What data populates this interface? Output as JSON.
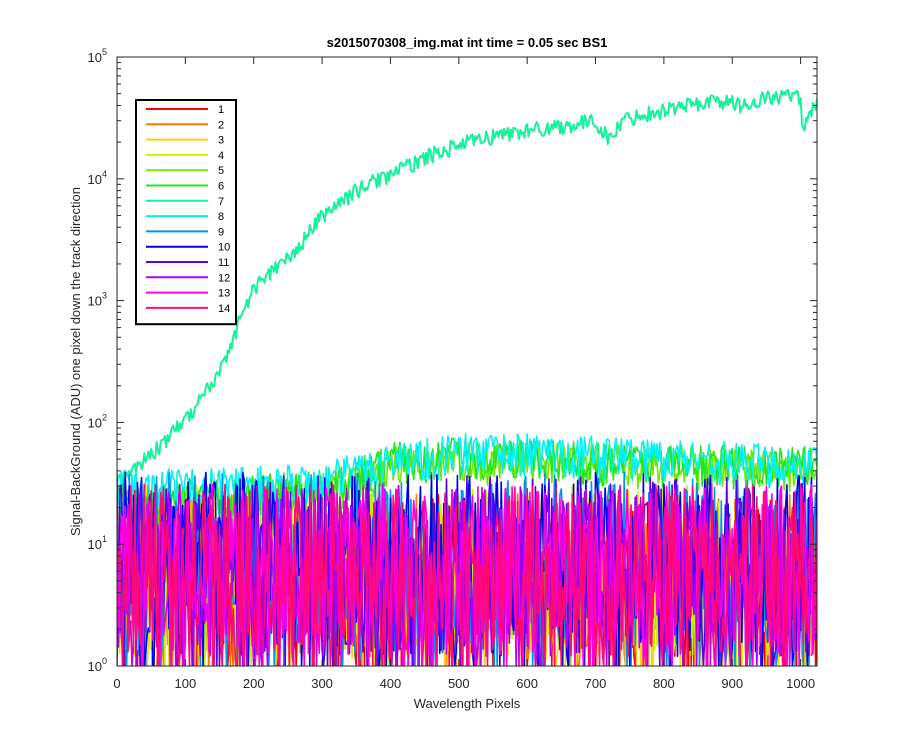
{
  "chart_data": {
    "type": "line",
    "title": "s2015070308_img.mat int time = 0.05 sec   BS1",
    "xlabel": "Wavelength Pixels",
    "ylabel": "Signal-BackGround (ADU) one pixel down the track direction",
    "xlim": [
      0,
      1024
    ],
    "ylim": [
      1,
      100000
    ],
    "yscale": "log",
    "x_ticks": [
      0,
      100,
      200,
      300,
      400,
      500,
      600,
      700,
      800,
      900,
      1000
    ],
    "x_tick_labels": [
      "0",
      "100",
      "200",
      "300",
      "400",
      "500",
      "600",
      "700",
      "800",
      "900",
      "1000"
    ],
    "y_ticks": [
      1,
      10,
      100,
      1000,
      10000,
      100000
    ],
    "y_tick_labels": [
      {
        "base": "10",
        "exp": "0"
      },
      {
        "base": "10",
        "exp": "1"
      },
      {
        "base": "10",
        "exp": "2"
      },
      {
        "base": "10",
        "exp": "3"
      },
      {
        "base": "10",
        "exp": "4"
      },
      {
        "base": "10",
        "exp": "5"
      }
    ],
    "legend_position": "top-left",
    "grid": false,
    "series": [
      {
        "name": "1",
        "color": "#ff0000",
        "profile": "noise",
        "points": [
          [
            0,
            10
          ],
          [
            1024,
            10
          ]
        ]
      },
      {
        "name": "2",
        "color": "#ff7a00",
        "profile": "noise",
        "points": [
          [
            0,
            10
          ],
          [
            1024,
            10
          ]
        ]
      },
      {
        "name": "3",
        "color": "#ffd000",
        "profile": "noise",
        "points": [
          [
            0,
            10
          ],
          [
            1024,
            10
          ]
        ]
      },
      {
        "name": "4",
        "color": "#c8f000",
        "profile": "noise",
        "points": [
          [
            0,
            12
          ],
          [
            1024,
            12
          ]
        ]
      },
      {
        "name": "5",
        "color": "#78e600",
        "profile": "noise",
        "points": [
          [
            0,
            25
          ],
          [
            300,
            30
          ],
          [
            400,
            55
          ],
          [
            500,
            60
          ],
          [
            600,
            60
          ],
          [
            800,
            55
          ],
          [
            1024,
            50
          ]
        ]
      },
      {
        "name": "6",
        "color": "#22e622",
        "profile": "noise",
        "points": [
          [
            0,
            28
          ],
          [
            300,
            35
          ],
          [
            400,
            60
          ],
          [
            500,
            65
          ],
          [
            600,
            62
          ],
          [
            800,
            58
          ],
          [
            1024,
            55
          ]
        ]
      },
      {
        "name": "7",
        "color": "#16f29a",
        "profile": "smooth",
        "points": [
          [
            0,
            35
          ],
          [
            20,
            40
          ],
          [
            50,
            55
          ],
          [
            80,
            80
          ],
          [
            100,
            105
          ],
          [
            120,
            150
          ],
          [
            150,
            260
          ],
          [
            170,
            500
          ],
          [
            180,
            700
          ],
          [
            190,
            950
          ],
          [
            200,
            1250
          ],
          [
            220,
            1650
          ],
          [
            250,
            2200
          ],
          [
            270,
            2900
          ],
          [
            280,
            3600
          ],
          [
            300,
            5000
          ],
          [
            320,
            6100
          ],
          [
            350,
            8000
          ],
          [
            380,
            9800
          ],
          [
            400,
            11000
          ],
          [
            430,
            13000
          ],
          [
            450,
            15000
          ],
          [
            470,
            16500
          ],
          [
            500,
            19000
          ],
          [
            530,
            21000
          ],
          [
            550,
            22500
          ],
          [
            580,
            24000
          ],
          [
            600,
            25000
          ],
          [
            630,
            26500
          ],
          [
            660,
            27500
          ],
          [
            700,
            30000
          ],
          [
            720,
            21000
          ],
          [
            740,
            30000
          ],
          [
            760,
            33000
          ],
          [
            800,
            37000
          ],
          [
            820,
            39000
          ],
          [
            850,
            42000
          ],
          [
            880,
            44000
          ],
          [
            900,
            42000
          ],
          [
            920,
            40000
          ],
          [
            940,
            45000
          ],
          [
            960,
            47000
          ],
          [
            980,
            48000
          ],
          [
            1000,
            46000
          ],
          [
            1005,
            20000
          ],
          [
            1010,
            35000
          ],
          [
            1024,
            40000
          ]
        ]
      },
      {
        "name": "8",
        "color": "#00f2f2",
        "profile": "noise",
        "points": [
          [
            0,
            35
          ],
          [
            300,
            40
          ],
          [
            400,
            60
          ],
          [
            500,
            70
          ],
          [
            550,
            75
          ],
          [
            600,
            70
          ],
          [
            800,
            65
          ],
          [
            1024,
            55
          ]
        ]
      },
      {
        "name": "9",
        "color": "#0096f0",
        "profile": "noise",
        "points": [
          [
            0,
            15
          ],
          [
            1024,
            15
          ]
        ]
      },
      {
        "name": "10",
        "color": "#0000e6",
        "profile": "noise",
        "points": [
          [
            0,
            15
          ],
          [
            1024,
            15
          ]
        ]
      },
      {
        "name": "11",
        "color": "#5500f0",
        "profile": "noise",
        "points": [
          [
            0,
            14
          ],
          [
            1024,
            14
          ]
        ]
      },
      {
        "name": "12",
        "color": "#b400f0",
        "profile": "noise",
        "points": [
          [
            0,
            12
          ],
          [
            1024,
            12
          ]
        ]
      },
      {
        "name": "13",
        "color": "#ff00dc",
        "profile": "noise",
        "points": [
          [
            0,
            12
          ],
          [
            1024,
            12
          ]
        ]
      },
      {
        "name": "14",
        "color": "#ff0a78",
        "profile": "noise",
        "points": [
          [
            0,
            12
          ],
          [
            1024,
            12
          ]
        ]
      }
    ]
  }
}
